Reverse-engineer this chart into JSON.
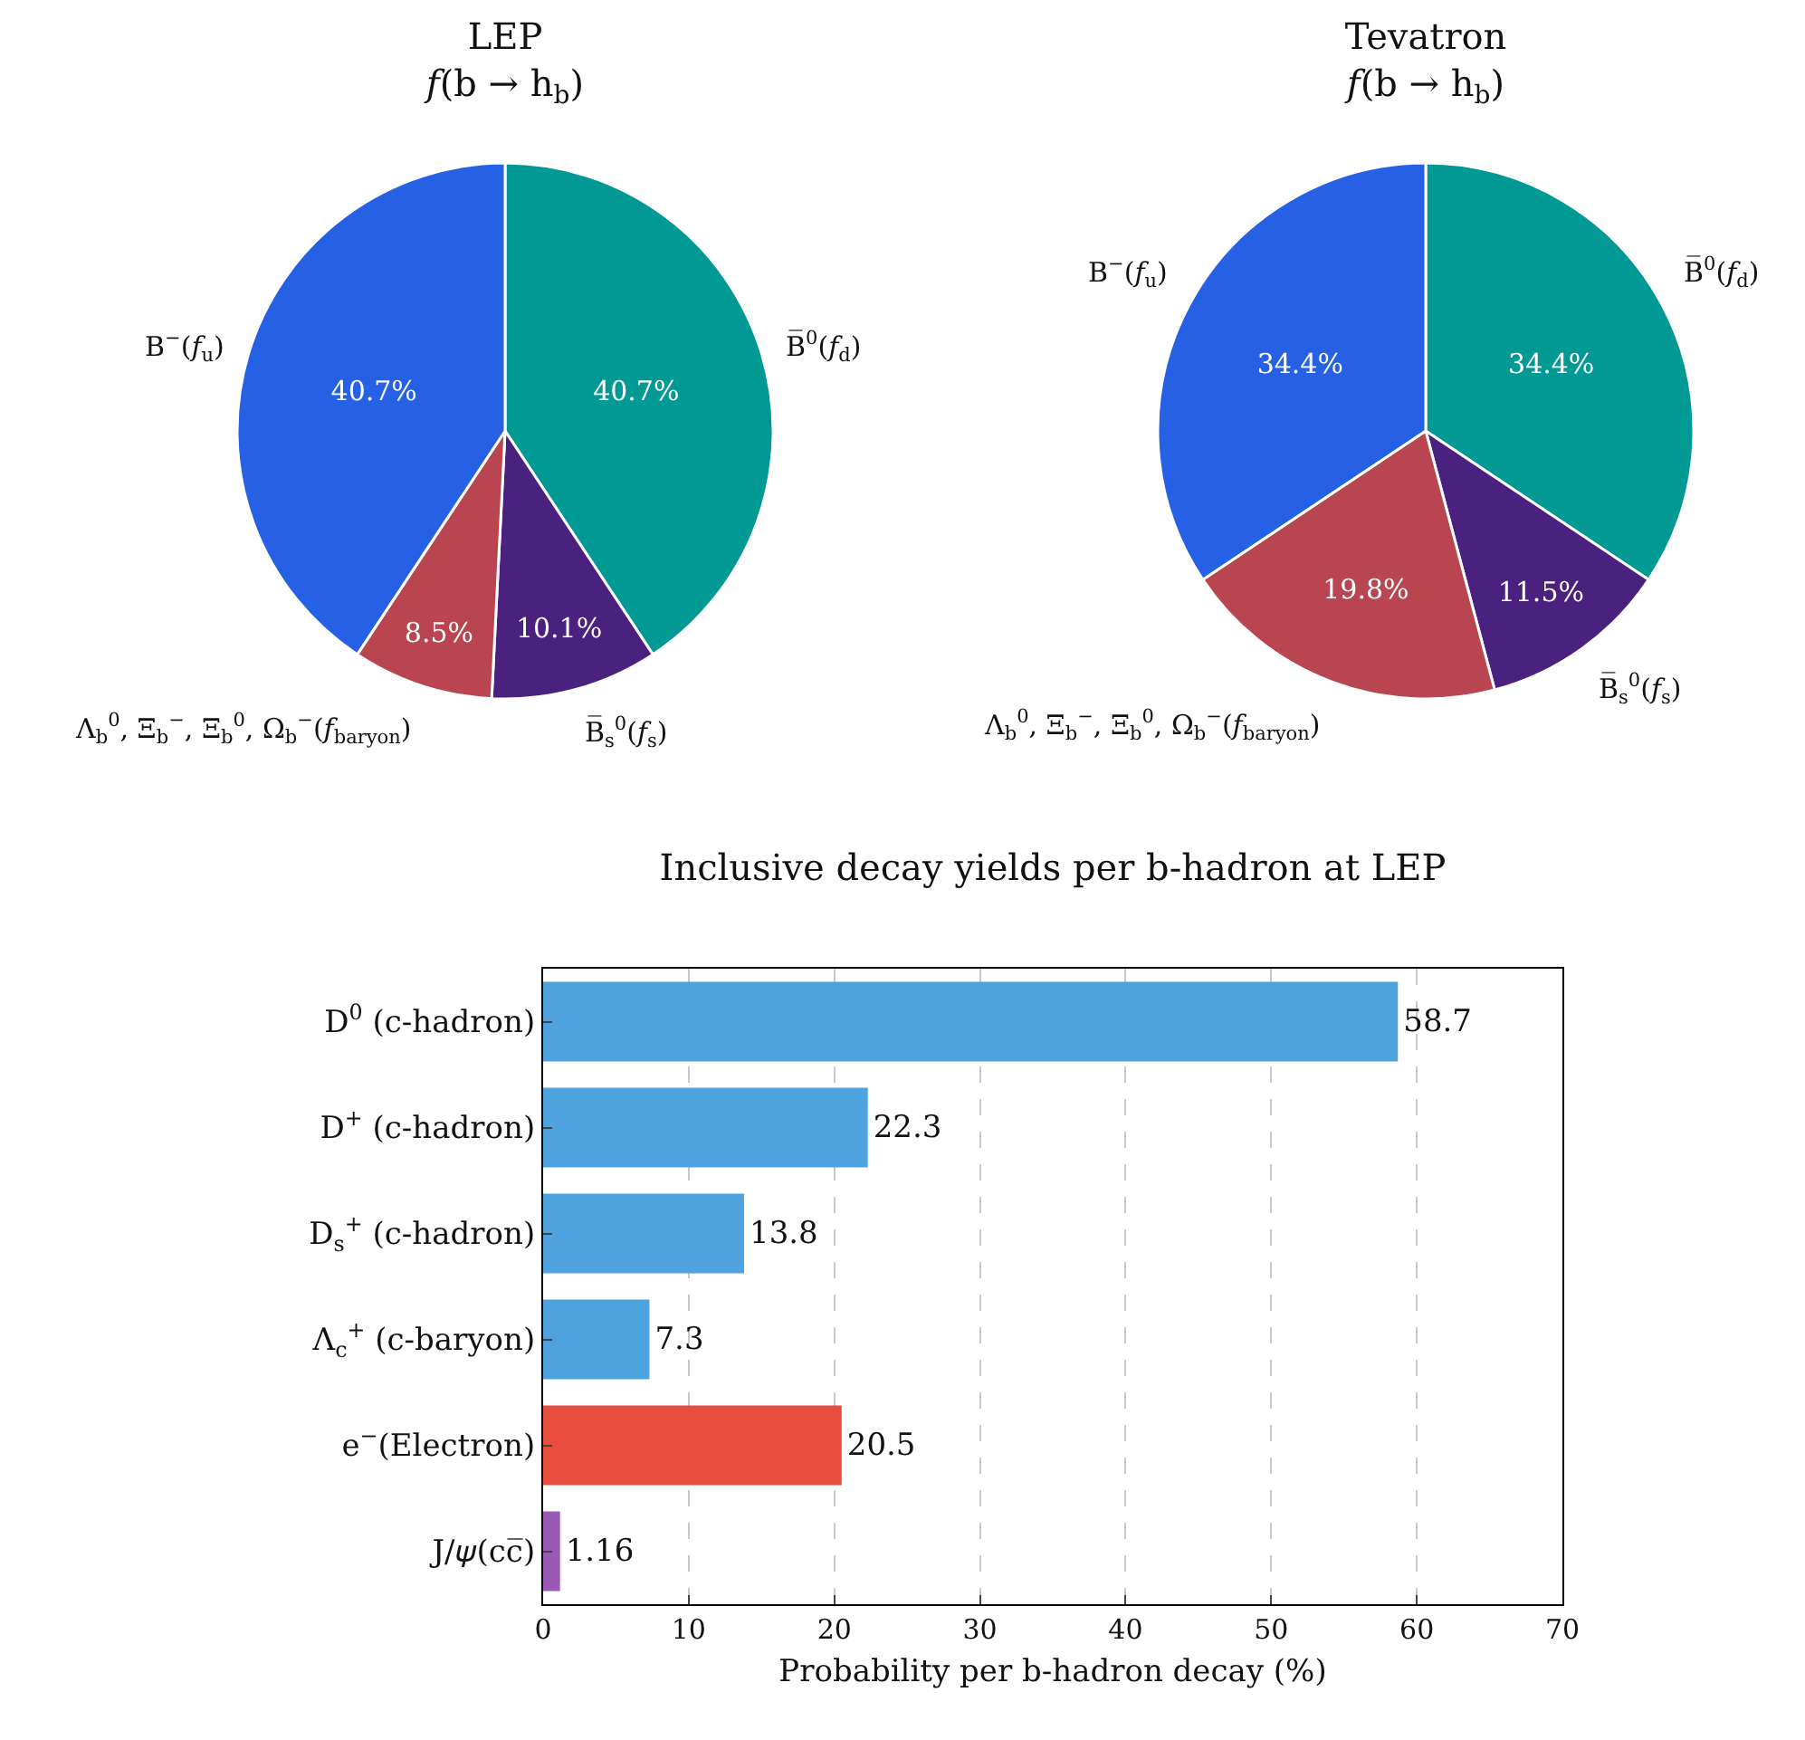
{
  "chart_data": [
    {
      "type": "pie",
      "title": "LEP\n𝑓(b → h$_{b}$)",
      "categories": [
        "B̅$^{0}$(𝑓$_{d}$)",
        "B̅$_{s}$$^{0}$(𝑓$_{s}$)",
        "Λ$_{b}$$^{0}$, Ξ$_{b}$$^{−}$, Ξ$_{b}$$^{0}$, Ω$_{b}$$^{−}$(𝑓$_{baryon}$)",
        "B$^{−}$(𝑓$_{u}$)"
      ],
      "values": [
        40.7,
        10.1,
        8.5,
        40.7
      ],
      "value_labels": [
        "40.7%",
        "10.1%",
        "8.5%",
        "40.7%"
      ],
      "colors": [
        "#009994",
        "#4b2180",
        "#b84550",
        "#2560e5"
      ],
      "legend": false
    },
    {
      "type": "pie",
      "title": "Tevatron\n𝑓(b → h$_{b}$)",
      "categories": [
        "B̅$^{0}$(𝑓$_{d}$)",
        "B̅$_{s}$$^{0}$(𝑓$_{s}$)",
        "Λ$_{b}$$^{0}$, Ξ$_{b}$$^{−}$, Ξ$_{b}$$^{0}$, Ω$_{b}$$^{−}$(𝑓$_{baryon}$)",
        "B$^{−}$(𝑓$_{u}$)"
      ],
      "values": [
        34.4,
        11.5,
        19.8,
        34.4
      ],
      "value_labels": [
        "34.4%",
        "11.5%",
        "19.8%",
        "34.4%"
      ],
      "colors": [
        "#009994",
        "#4b2180",
        "#b84550",
        "#2560e5"
      ],
      "legend": false
    },
    {
      "type": "bar",
      "orientation": "horizontal",
      "title": "Inclusive decay yields per b-hadron at LEP",
      "xlabel": "Probability per b-hadron decay (%)",
      "categories": [
        "D$^{0}$ (c-hadron)",
        "D$^{+}$ (c-hadron)",
        "D$_{s}$$^{+}$ (c-hadron)",
        "Λ$_{c}$$^{+}$ (c-baryon)",
        "e$^{−}$(Electron)",
        "J/𝜓(cc̅)"
      ],
      "values": [
        58.7,
        22.3,
        13.8,
        7.3,
        20.5,
        1.16
      ],
      "colors": [
        "#4ea3de",
        "#4ea3de",
        "#4ea3de",
        "#4ea3de",
        "#e74c3c",
        "#9b59b6"
      ],
      "xlim": [
        0,
        70
      ],
      "xticks": [
        0,
        10,
        20,
        30,
        40,
        50,
        60,
        70
      ],
      "grid": "x",
      "data_labels": true,
      "legend": false
    }
  ]
}
